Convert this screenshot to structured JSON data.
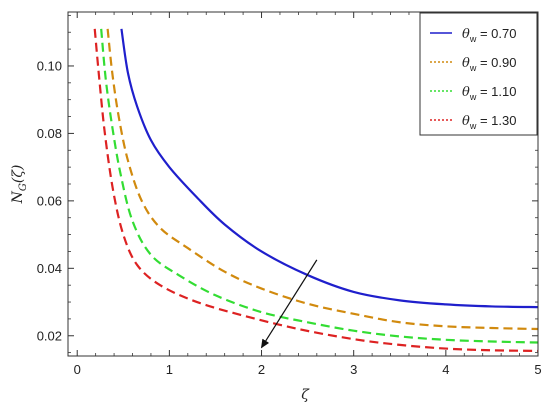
{
  "chart_data": {
    "type": "line",
    "title": "",
    "xlabel": "ζ",
    "ylabel": "N_G(ζ)",
    "xlim": [
      -0.1,
      5.0
    ],
    "ylim": [
      0.014,
      0.116
    ],
    "x_ticks": [
      0,
      1,
      2,
      3,
      4,
      5
    ],
    "y_ticks": [
      0.02,
      0.04,
      0.06,
      0.08,
      0.1
    ],
    "y_tick_labels": [
      "0.02",
      "0.04",
      "0.06",
      "0.08",
      "0.10"
    ],
    "grid": false,
    "legend_position": "top-right",
    "series": [
      {
        "name": "θw = 0.70",
        "legend_symbol": "θ",
        "legend_subscript": "w",
        "legend_value": "= 0.70",
        "color": "#1f1fcc",
        "dash": "solid",
        "x": [
          0.48,
          0.55,
          0.65,
          0.8,
          1.0,
          1.3,
          1.6,
          2.0,
          2.5,
          3.0,
          3.5,
          4.0,
          4.5,
          5.0
        ],
        "y": [
          0.111,
          0.098,
          0.088,
          0.078,
          0.07,
          0.061,
          0.053,
          0.045,
          0.038,
          0.033,
          0.0305,
          0.0293,
          0.0287,
          0.0285
        ]
      },
      {
        "name": "θw = 0.90",
        "legend_symbol": "θ",
        "legend_subscript": "w",
        "legend_value": "= 0.90",
        "color": "#d18a0e",
        "dash": "dashed",
        "x": [
          0.33,
          0.38,
          0.45,
          0.55,
          0.7,
          0.9,
          1.2,
          1.6,
          2.0,
          2.5,
          3.0,
          3.5,
          4.0,
          4.5,
          5.0
        ],
        "y": [
          0.111,
          0.098,
          0.085,
          0.072,
          0.06,
          0.052,
          0.046,
          0.039,
          0.034,
          0.0295,
          0.0265,
          0.024,
          0.0228,
          0.0223,
          0.022
        ]
      },
      {
        "name": "θw = 1.10",
        "legend_symbol": "θ",
        "legend_subscript": "w",
        "legend_value": "= 1.10",
        "color": "#33dd33",
        "dash": "dashed",
        "x": [
          0.26,
          0.31,
          0.38,
          0.47,
          0.6,
          0.8,
          1.1,
          1.5,
          2.0,
          2.5,
          3.0,
          3.5,
          4.0,
          4.5,
          5.0
        ],
        "y": [
          0.111,
          0.096,
          0.082,
          0.068,
          0.054,
          0.044,
          0.038,
          0.032,
          0.027,
          0.024,
          0.0215,
          0.0198,
          0.0188,
          0.0183,
          0.018
        ]
      },
      {
        "name": "θw = 1.30",
        "legend_symbol": "θ",
        "legend_subscript": "w",
        "legend_value": "= 1.30",
        "color": "#dd2222",
        "dash": "dashed",
        "x": [
          0.19,
          0.24,
          0.3,
          0.39,
          0.5,
          0.65,
          0.9,
          1.3,
          1.8,
          2.4,
          3.0,
          3.5,
          4.0,
          4.5,
          5.0
        ],
        "y": [
          0.111,
          0.096,
          0.08,
          0.063,
          0.05,
          0.041,
          0.035,
          0.03,
          0.026,
          0.022,
          0.019,
          0.0173,
          0.0162,
          0.0157,
          0.0155
        ]
      }
    ],
    "annotations": [
      {
        "type": "arrow",
        "direction": "increasing θw",
        "from": [
          2.6,
          0.0425
        ],
        "to": [
          2.0,
          0.0165
        ]
      }
    ]
  }
}
